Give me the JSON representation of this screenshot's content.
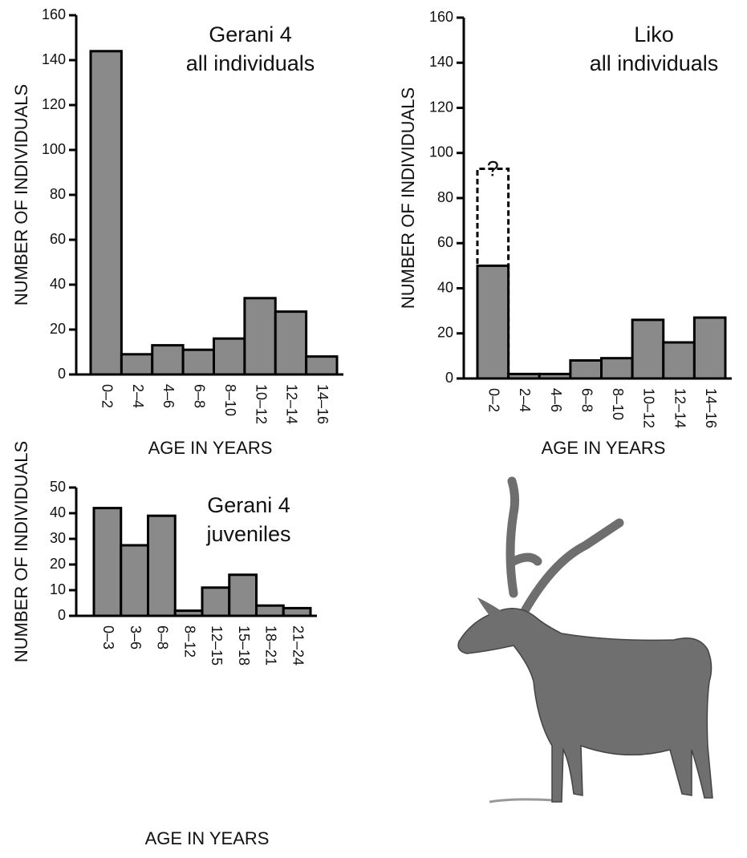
{
  "chart_data": [
    {
      "type": "bar",
      "title": "Gerani 4",
      "subtitle": "all individuals",
      "x_label": "AGE IN YEARS",
      "y_label": "NUMBER OF INDIVIDUALS",
      "categories": [
        "0–2",
        "2–4",
        "4–6",
        "6–8",
        "8–10",
        "10–12",
        "12–14",
        "14–16"
      ],
      "values": [
        144,
        9,
        13,
        11,
        16,
        34,
        28,
        8
      ],
      "color": "#8a8a8a",
      "ylim": [
        0,
        160
      ],
      "yticks": [
        0,
        20,
        40,
        60,
        80,
        100,
        120,
        140,
        160
      ]
    },
    {
      "type": "bar",
      "title": "Liko",
      "subtitle": "all individuals",
      "x_label": "AGE IN YEARS",
      "y_label": "NUMBER OF INDIVIDUALS",
      "categories": [
        "0–2",
        "2–4",
        "4–6",
        "6–8",
        "8–10",
        "10–12",
        "12–14",
        "14–16"
      ],
      "values": [
        50,
        2,
        2,
        8,
        9,
        26,
        16,
        27
      ],
      "color": "#8a8a8a",
      "ylim": [
        0,
        160
      ],
      "yticks": [
        0,
        20,
        40,
        60,
        80,
        100,
        120,
        140,
        160
      ],
      "annotations": [
        {
          "text": "?",
          "category": 0,
          "y": 93
        }
      ]
    },
    {
      "type": "bar",
      "title": "Gerani 4",
      "subtitle": "juveniles",
      "x_label": "AGE IN YEARS",
      "y_label": "NUMBER OF INDIVIDUALS",
      "categories": [
        "0–3",
        "3–6",
        "6–8",
        "8–12",
        "12–15",
        "15–18",
        "18–21",
        "21–24"
      ],
      "values": [
        42,
        27.5,
        39,
        2,
        11,
        16,
        4,
        3
      ],
      "color": "#8a8a8a",
      "ylim": [
        0,
        50
      ],
      "yticks": [
        0,
        10,
        20,
        30,
        40,
        50
      ]
    }
  ]
}
